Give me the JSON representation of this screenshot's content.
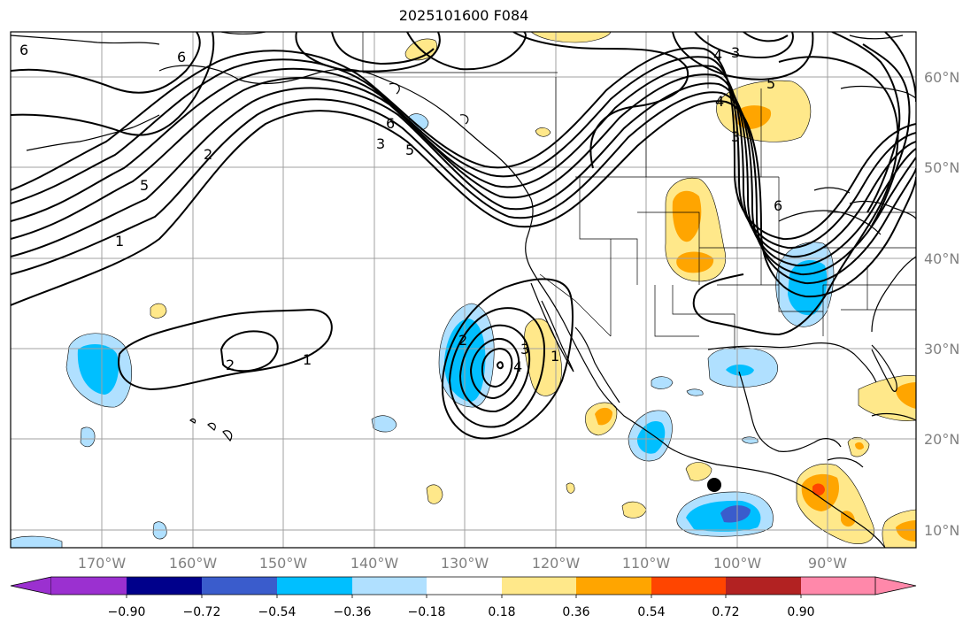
{
  "title": "2025101600 F084",
  "latitude_labels": [
    {
      "value": 60,
      "text": "60°N"
    },
    {
      "value": 50,
      "text": "50°N"
    },
    {
      "value": 40,
      "text": "40°N"
    },
    {
      "value": 30,
      "text": "30°N"
    },
    {
      "value": 20,
      "text": "20°N"
    },
    {
      "value": 10,
      "text": "10°N"
    }
  ],
  "longitude_labels": [
    {
      "value": -170,
      "text": "170°W"
    },
    {
      "value": -160,
      "text": "160°W"
    },
    {
      "value": -150,
      "text": "150°W"
    },
    {
      "value": -140,
      "text": "140°W"
    },
    {
      "value": -130,
      "text": "130°W"
    },
    {
      "value": -120,
      "text": "120°W"
    },
    {
      "value": -110,
      "text": "110°W"
    },
    {
      "value": -100,
      "text": "100°W"
    },
    {
      "value": -90,
      "text": "90°W"
    }
  ],
  "colorbar": {
    "labels": [
      "−0.90",
      "−0.72",
      "−0.54",
      "−0.36",
      "−0.18",
      "0.18",
      "0.36",
      "0.54",
      "0.72",
      "0.90"
    ],
    "colors": [
      "#9b30d0",
      "#00008b",
      "#3a5ccc",
      "#00bfff",
      "#b0e0ff",
      "#ffffff",
      "#ffe88a",
      "#ffa500",
      "#ff4500",
      "#b22222",
      "#ff88aa"
    ]
  },
  "contour_labels": [
    "6",
    "6",
    "5",
    "2",
    "1",
    "2",
    "1",
    "6",
    "3",
    "5",
    "3",
    "2",
    "3",
    "4",
    "1",
    "4",
    "3",
    "5",
    "4",
    "6"
  ],
  "marker": {
    "type": "black-dot",
    "lat": 15,
    "lon": -102
  }
}
